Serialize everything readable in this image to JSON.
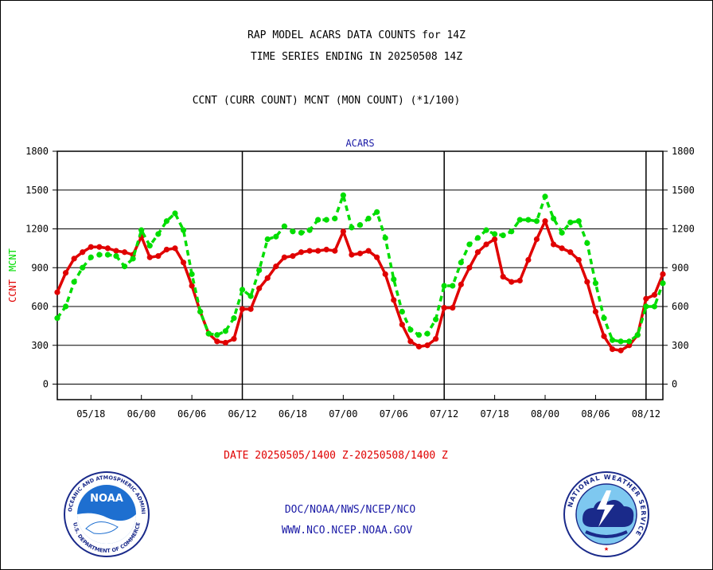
{
  "header": {
    "title1": "RAP MODEL ACARS DATA COUNTS for 14Z",
    "title2": "TIME SERIES ENDING IN 20250508 14Z",
    "legend_line": "CCNT (CURR COUNT) MCNT (MON COUNT) (*1/100)"
  },
  "footer": {
    "date_range": "DATE 20250505/1400 Z-20250508/1400 Z",
    "link1": "DOC/NOAA/NWS/NCEP/NCO",
    "link2": "WWW.NCO.NCEP.NOAA.GOV"
  },
  "logos": {
    "noaa_text": "NOAA",
    "noaa_ring": "NATIONAL OCEANIC AND ATMOSPHERIC ADMINISTRATION",
    "noaa_ring_bottom": "U.S. DEPARTMENT OF COMMERCE",
    "nws_ring": "NATIONAL WEATHER SERVICE"
  },
  "chart_data": {
    "type": "line",
    "title": "ACARS",
    "ylabel_left_1": "CCNT",
    "ylabel_left_2": "MCNT",
    "ylim": [
      -120,
      1800
    ],
    "yticks": [
      0,
      300,
      600,
      900,
      1200,
      1500,
      1800
    ],
    "ytick_labels": [
      "0",
      "300",
      "600",
      "900",
      "1200",
      "1500",
      "1800"
    ],
    "xlim": [
      0,
      72
    ],
    "xticks": [
      4,
      10,
      16,
      22,
      28,
      34,
      40,
      46,
      52,
      58,
      64,
      70
    ],
    "xtick_labels": [
      "05/18",
      "06/00",
      "06/06",
      "06/12",
      "06/18",
      "07/00",
      "07/06",
      "07/12",
      "07/18",
      "08/00",
      "08/06",
      "08/12"
    ],
    "day_boundaries": [
      22,
      46,
      70
    ],
    "grid": true,
    "colors": {
      "ccnt": "#e00000",
      "mcnt": "#00dd00",
      "grid": "#000000",
      "axis": "#000000"
    },
    "series": [
      {
        "name": "CCNT",
        "style": "solid",
        "values": [
          710,
          860,
          970,
          1020,
          1060,
          1060,
          1050,
          1030,
          1020,
          1000,
          1140,
          980,
          990,
          1040,
          1050,
          940,
          760,
          560,
          390,
          330,
          320,
          350,
          580,
          580,
          740,
          820,
          910,
          980,
          990,
          1020,
          1030,
          1030,
          1040,
          1030,
          1180,
          1000,
          1010,
          1030,
          980,
          850,
          650,
          460,
          330,
          290,
          300,
          350,
          590,
          590,
          770,
          900,
          1020,
          1080,
          1120,
          830,
          790,
          800,
          960,
          1120,
          1260,
          1080,
          1050,
          1020,
          960,
          790,
          560,
          370,
          270,
          260,
          300,
          380,
          660,
          690,
          850
        ]
      },
      {
        "name": "MCNT",
        "style": "dashed",
        "values": [
          510,
          600,
          790,
          900,
          980,
          1000,
          1000,
          990,
          910,
          970,
          1190,
          1070,
          1160,
          1260,
          1320,
          1190,
          850,
          560,
          390,
          380,
          410,
          510,
          730,
          680,
          880,
          1120,
          1140,
          1220,
          1180,
          1170,
          1190,
          1270,
          1270,
          1280,
          1460,
          1210,
          1230,
          1280,
          1330,
          1130,
          810,
          560,
          420,
          380,
          390,
          500,
          760,
          760,
          940,
          1080,
          1130,
          1190,
          1160,
          1150,
          1180,
          1270,
          1270,
          1260,
          1450,
          1280,
          1170,
          1250,
          1260,
          1090,
          780,
          510,
          340,
          330,
          330,
          380,
          600,
          600,
          780
        ]
      }
    ]
  }
}
